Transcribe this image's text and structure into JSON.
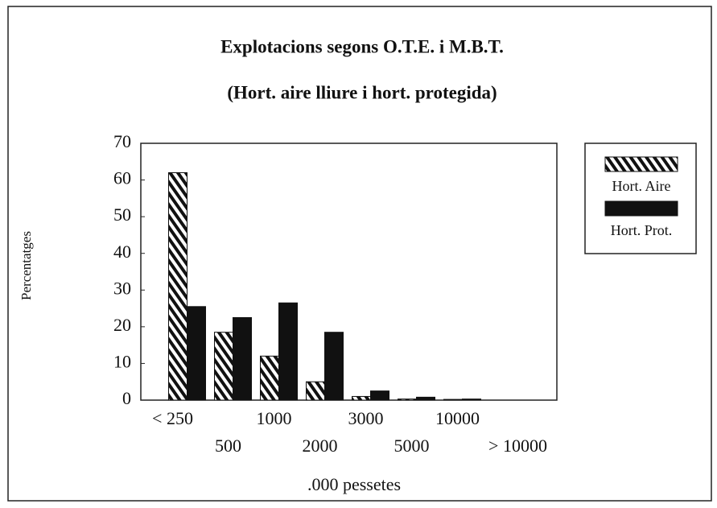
{
  "chart_data": {
    "type": "bar",
    "title": "Explotacions segons O.T.E. i M.B.T.",
    "subtitle": "(Hort. aire lliure i hort. protegida)",
    "ylabel": "Percentatges",
    "xlabel": ".000 pessetes",
    "categories": [
      "< 250",
      "500",
      "1000",
      "2000",
      "3000",
      "5000",
      "10000",
      "> 10000"
    ],
    "series": [
      {
        "name": "Hort. Aire",
        "color": "#111111",
        "hatch": true,
        "values": [
          62,
          18.5,
          12,
          5,
          1,
          0.3,
          0.2,
          0
        ]
      },
      {
        "name": "Hort. Prot.",
        "color": "#111111",
        "hatch": false,
        "values": [
          25.5,
          22.5,
          26.5,
          18.5,
          2.5,
          0.8,
          0.3,
          0
        ]
      }
    ],
    "ylim": [
      0,
      70
    ],
    "yticks": [
      0,
      10,
      20,
      30,
      40,
      50,
      60,
      70
    ],
    "grid": false,
    "legend": "right"
  }
}
